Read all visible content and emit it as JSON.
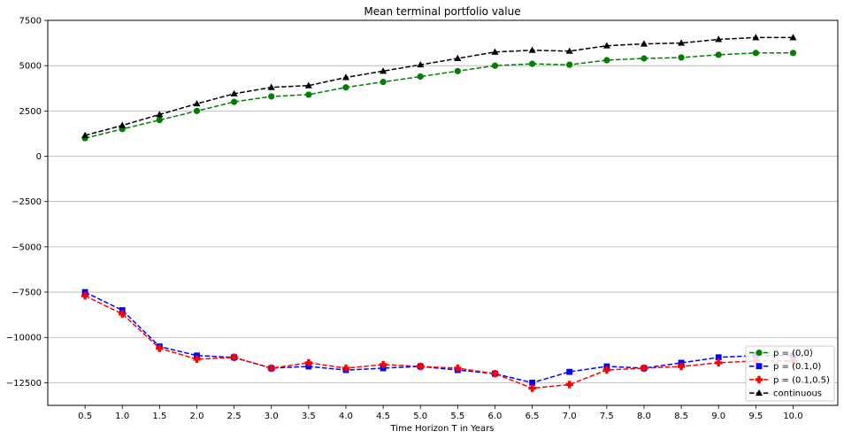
{
  "chart_data": {
    "type": "line",
    "title": "Mean terminal portfolio value",
    "xlabel": "Time Horizon T in Years",
    "ylabel": "",
    "x": [
      0.5,
      1.0,
      1.5,
      2.0,
      2.5,
      3.0,
      3.5,
      4.0,
      4.5,
      5.0,
      5.5,
      6.0,
      6.5,
      7.0,
      7.5,
      8.0,
      8.5,
      9.0,
      9.5,
      10.0
    ],
    "x_tick_labels": [
      "0.5",
      "1.0",
      "1.5",
      "2.0",
      "2.5",
      "3.0",
      "3.5",
      "4.0",
      "4.5",
      "5.0",
      "5.5",
      "6.0",
      "6.5",
      "7.0",
      "7.5",
      "8.0",
      "8.5",
      "9.0",
      "9.5",
      "10.0"
    ],
    "y_ticks": [
      -12500,
      -10000,
      -7500,
      -5000,
      -2500,
      0,
      2500,
      5000,
      7500
    ],
    "y_tick_labels": [
      "−12500",
      "−10000",
      "−7500",
      "−5000",
      "−2500",
      "0",
      "2500",
      "5000",
      "7500"
    ],
    "xlim": [
      0.0,
      10.6
    ],
    "ylim": [
      -13750,
      7500
    ],
    "grid": "horizontal",
    "legend_position": "lower-right",
    "series": [
      {
        "name": "p = (0,0)",
        "color": "#008000",
        "marker": "circle",
        "values": [
          1000,
          1500,
          2000,
          2500,
          3000,
          3300,
          3400,
          3800,
          4100,
          4400,
          4700,
          5000,
          5100,
          5050,
          5300,
          5400,
          5450,
          5600,
          5700,
          5700
        ]
      },
      {
        "name": "p = (0.1,0)",
        "color": "#0000ff",
        "marker": "square",
        "values": [
          -7500,
          -8500,
          -10500,
          -11000,
          -11100,
          -11700,
          -11600,
          -11800,
          -11700,
          -11600,
          -11800,
          -12000,
          -12500,
          -11900,
          -11600,
          -11700,
          -11400,
          -11100,
          -11000,
          -11000
        ]
      },
      {
        "name": "p = (0.1,0.5)",
        "color": "#ff0000",
        "marker": "plus",
        "values": [
          -7700,
          -8700,
          -10600,
          -11200,
          -11100,
          -11700,
          -11400,
          -11700,
          -11500,
          -11600,
          -11700,
          -12000,
          -12800,
          -12600,
          -11800,
          -11700,
          -11600,
          -11400,
          -11300,
          -11300
        ]
      },
      {
        "name": "continuous",
        "color": "#000000",
        "marker": "triangle",
        "values": [
          1150,
          1700,
          2300,
          2900,
          3450,
          3800,
          3900,
          4350,
          4700,
          5050,
          5400,
          5750,
          5850,
          5800,
          6100,
          6200,
          6250,
          6450,
          6550,
          6550
        ]
      }
    ]
  }
}
